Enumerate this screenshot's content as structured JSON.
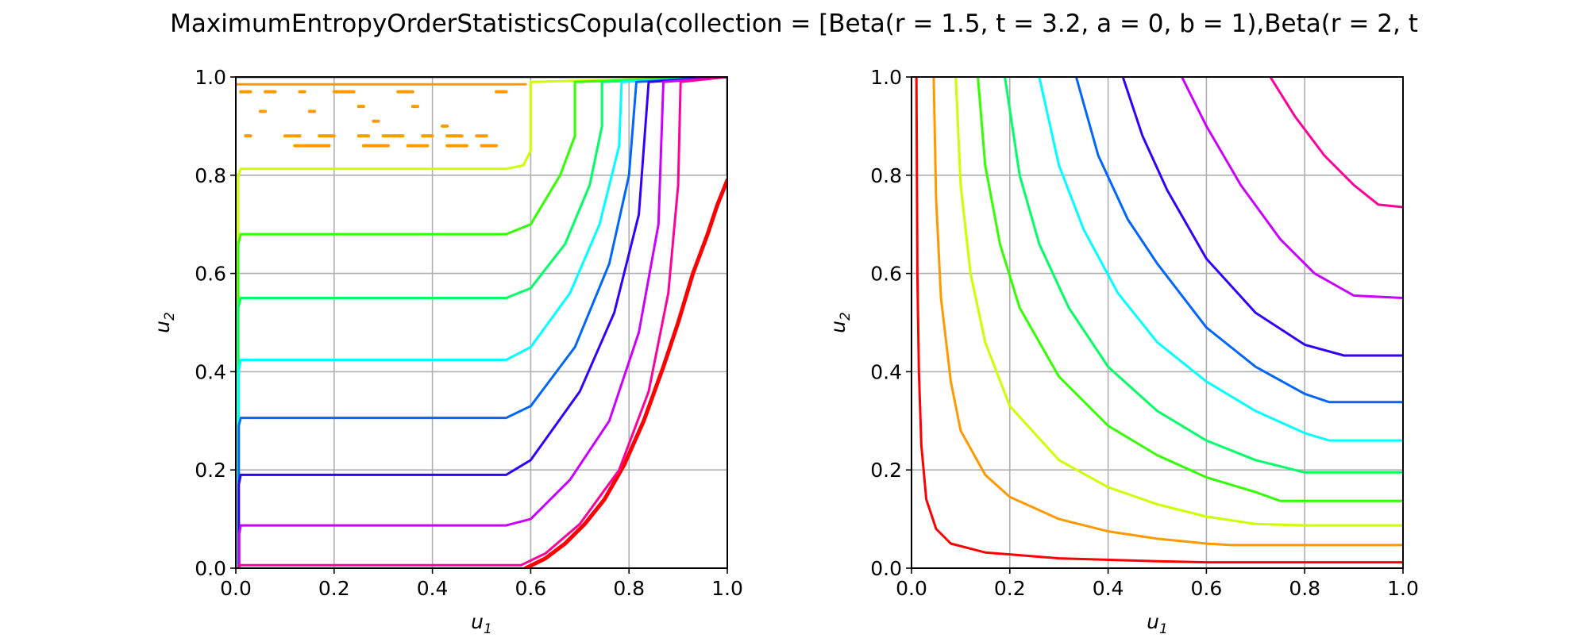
{
  "figure_title": "MaximumEntropyOrderStatisticsCopula(collection = [Beta(r = 1.5, t = 3.2, a = 0, b = 1),Beta(r = 2, t",
  "level_colors": [
    "#ff0000",
    "#ff9900",
    "#ccff00",
    "#33ff00",
    "#00ff66",
    "#00ffff",
    "#0066ff",
    "#3300ff",
    "#cc00ff",
    "#ff0099"
  ],
  "chart_data": [
    {
      "type": "contour",
      "title": "",
      "xlabel": "u1",
      "ylabel": "u2",
      "xlim": [
        0,
        1
      ],
      "ylim": [
        0,
        1
      ],
      "xticks": [
        "0.0",
        "0.2",
        "0.4",
        "0.6",
        "0.8",
        "1.0"
      ],
      "yticks": [
        "0.0",
        "0.2",
        "0.4",
        "0.6",
        "0.8",
        "1.0"
      ],
      "grid": true,
      "legend": "none",
      "series": [
        {
          "color": "#ff0000",
          "width": 5,
          "points": [
            [
              0.59,
              0.0
            ],
            [
              0.63,
              0.02
            ],
            [
              0.67,
              0.05
            ],
            [
              0.71,
              0.09
            ],
            [
              0.75,
              0.14
            ],
            [
              0.79,
              0.21
            ],
            [
              0.83,
              0.3
            ],
            [
              0.87,
              0.41
            ],
            [
              0.9,
              0.5
            ],
            [
              0.93,
              0.6
            ],
            [
              0.96,
              0.68
            ],
            [
              0.98,
              0.74
            ],
            [
              1.0,
              0.79
            ]
          ]
        },
        {
          "color": "#ff9900",
          "width": 3,
          "points": [
            [
              0.0,
              0.985
            ],
            [
              0.59,
              0.985
            ]
          ]
        },
        {
          "color": "#ccff00",
          "width": 3,
          "points": [
            [
              0.005,
              0.0
            ],
            [
              0.005,
              0.8
            ],
            [
              0.01,
              0.813
            ],
            [
              0.55,
              0.813
            ],
            [
              0.585,
              0.82
            ],
            [
              0.6,
              0.85
            ],
            [
              0.6,
              0.99
            ],
            [
              1.0,
              1.0
            ]
          ]
        },
        {
          "color": "#33ff00",
          "width": 3,
          "points": [
            [
              0.005,
              0.0
            ],
            [
              0.005,
              0.66
            ],
            [
              0.01,
              0.68
            ],
            [
              0.55,
              0.68
            ],
            [
              0.6,
              0.7
            ],
            [
              0.66,
              0.8
            ],
            [
              0.69,
              0.88
            ],
            [
              0.69,
              0.99
            ],
            [
              1.0,
              1.0
            ]
          ]
        },
        {
          "color": "#00ff66",
          "width": 3,
          "points": [
            [
              0.005,
              0.0
            ],
            [
              0.005,
              0.53
            ],
            [
              0.01,
              0.55
            ],
            [
              0.55,
              0.55
            ],
            [
              0.6,
              0.57
            ],
            [
              0.67,
              0.66
            ],
            [
              0.72,
              0.78
            ],
            [
              0.745,
              0.9
            ],
            [
              0.745,
              0.99
            ],
            [
              1.0,
              1.0
            ]
          ]
        },
        {
          "color": "#00ffff",
          "width": 3,
          "points": [
            [
              0.006,
              0.0
            ],
            [
              0.006,
              0.4
            ],
            [
              0.01,
              0.424
            ],
            [
              0.55,
              0.424
            ],
            [
              0.6,
              0.45
            ],
            [
              0.68,
              0.56
            ],
            [
              0.74,
              0.7
            ],
            [
              0.78,
              0.86
            ],
            [
              0.785,
              0.99
            ],
            [
              1.0,
              1.0
            ]
          ]
        },
        {
          "color": "#0066ff",
          "width": 3,
          "points": [
            [
              0.006,
              0.0
            ],
            [
              0.006,
              0.29
            ],
            [
              0.01,
              0.306
            ],
            [
              0.55,
              0.306
            ],
            [
              0.6,
              0.33
            ],
            [
              0.69,
              0.45
            ],
            [
              0.76,
              0.62
            ],
            [
              0.8,
              0.8
            ],
            [
              0.815,
              0.99
            ],
            [
              1.0,
              1.0
            ]
          ]
        },
        {
          "color": "#3300ff",
          "width": 3,
          "points": [
            [
              0.006,
              0.0
            ],
            [
              0.006,
              0.17
            ],
            [
              0.01,
              0.19
            ],
            [
              0.55,
              0.19
            ],
            [
              0.6,
              0.22
            ],
            [
              0.7,
              0.36
            ],
            [
              0.77,
              0.52
            ],
            [
              0.82,
              0.72
            ],
            [
              0.84,
              0.99
            ],
            [
              1.0,
              1.0
            ]
          ]
        },
        {
          "color": "#cc00ff",
          "width": 3,
          "points": [
            [
              0.007,
              0.0
            ],
            [
              0.007,
              0.07
            ],
            [
              0.01,
              0.087
            ],
            [
              0.55,
              0.087
            ],
            [
              0.6,
              0.1
            ],
            [
              0.68,
              0.18
            ],
            [
              0.76,
              0.3
            ],
            [
              0.82,
              0.48
            ],
            [
              0.86,
              0.7
            ],
            [
              0.87,
              0.99
            ],
            [
              1.0,
              1.0
            ]
          ]
        },
        {
          "color": "#ff0099",
          "width": 3,
          "points": [
            [
              0.007,
              0.0
            ],
            [
              0.007,
              0.006
            ],
            [
              0.58,
              0.006
            ],
            [
              0.63,
              0.03
            ],
            [
              0.7,
              0.09
            ],
            [
              0.78,
              0.2
            ],
            [
              0.84,
              0.36
            ],
            [
              0.88,
              0.56
            ],
            [
              0.9,
              0.78
            ],
            [
              0.905,
              0.99
            ],
            [
              1.0,
              1.0
            ]
          ]
        },
        {
          "color": "#000000",
          "width": 2.5,
          "points": [
            [
              0.0,
              1.0
            ],
            [
              1.0,
              1.0
            ],
            [
              1.0,
              0.8
            ]
          ]
        }
      ]
    },
    {
      "type": "contour",
      "title": "",
      "xlabel": "u1",
      "ylabel": "u2",
      "xlim": [
        0,
        1
      ],
      "ylim": [
        0,
        1
      ],
      "xticks": [
        "0.0",
        "0.2",
        "0.4",
        "0.6",
        "0.8",
        "1.0"
      ],
      "yticks": [
        "0.0",
        "0.2",
        "0.4",
        "0.6",
        "0.8",
        "1.0"
      ],
      "grid": true,
      "legend": "none",
      "series": [
        {
          "color": "#ff0000",
          "width": 3,
          "points": [
            [
              0.01,
              1.0
            ],
            [
              0.012,
              0.6
            ],
            [
              0.015,
              0.4
            ],
            [
              0.02,
              0.25
            ],
            [
              0.03,
              0.14
            ],
            [
              0.05,
              0.08
            ],
            [
              0.08,
              0.05
            ],
            [
              0.15,
              0.032
            ],
            [
              0.3,
              0.02
            ],
            [
              0.5,
              0.014
            ],
            [
              0.6,
              0.012
            ],
            [
              1.0,
              0.012
            ]
          ]
        },
        {
          "color": "#ff9900",
          "width": 3,
          "points": [
            [
              0.045,
              1.0
            ],
            [
              0.05,
              0.75
            ],
            [
              0.06,
              0.55
            ],
            [
              0.08,
              0.38
            ],
            [
              0.1,
              0.28
            ],
            [
              0.15,
              0.19
            ],
            [
              0.2,
              0.145
            ],
            [
              0.3,
              0.1
            ],
            [
              0.4,
              0.075
            ],
            [
              0.5,
              0.06
            ],
            [
              0.6,
              0.05
            ],
            [
              0.65,
              0.047
            ],
            [
              1.0,
              0.047
            ]
          ]
        },
        {
          "color": "#ccff00",
          "width": 3,
          "points": [
            [
              0.09,
              1.0
            ],
            [
              0.1,
              0.78
            ],
            [
              0.12,
              0.6
            ],
            [
              0.15,
              0.46
            ],
            [
              0.2,
              0.33
            ],
            [
              0.3,
              0.22
            ],
            [
              0.4,
              0.165
            ],
            [
              0.5,
              0.13
            ],
            [
              0.6,
              0.105
            ],
            [
              0.7,
              0.09
            ],
            [
              0.8,
              0.087
            ],
            [
              1.0,
              0.087
            ]
          ]
        },
        {
          "color": "#33ff00",
          "width": 3,
          "points": [
            [
              0.135,
              1.0
            ],
            [
              0.15,
              0.82
            ],
            [
              0.18,
              0.66
            ],
            [
              0.22,
              0.53
            ],
            [
              0.3,
              0.39
            ],
            [
              0.4,
              0.29
            ],
            [
              0.5,
              0.23
            ],
            [
              0.6,
              0.185
            ],
            [
              0.7,
              0.155
            ],
            [
              0.75,
              0.137
            ],
            [
              1.0,
              0.137
            ]
          ]
        },
        {
          "color": "#00ff66",
          "width": 3,
          "points": [
            [
              0.19,
              1.0
            ],
            [
              0.22,
              0.8
            ],
            [
              0.26,
              0.66
            ],
            [
              0.32,
              0.53
            ],
            [
              0.4,
              0.41
            ],
            [
              0.5,
              0.32
            ],
            [
              0.6,
              0.26
            ],
            [
              0.7,
              0.22
            ],
            [
              0.8,
              0.195
            ],
            [
              1.0,
              0.195
            ]
          ]
        },
        {
          "color": "#00ffff",
          "width": 3,
          "points": [
            [
              0.26,
              1.0
            ],
            [
              0.3,
              0.82
            ],
            [
              0.35,
              0.69
            ],
            [
              0.42,
              0.56
            ],
            [
              0.5,
              0.46
            ],
            [
              0.6,
              0.38
            ],
            [
              0.7,
              0.32
            ],
            [
              0.8,
              0.275
            ],
            [
              0.85,
              0.26
            ],
            [
              1.0,
              0.26
            ]
          ]
        },
        {
          "color": "#0066ff",
          "width": 3,
          "points": [
            [
              0.335,
              1.0
            ],
            [
              0.38,
              0.84
            ],
            [
              0.44,
              0.71
            ],
            [
              0.5,
              0.62
            ],
            [
              0.6,
              0.49
            ],
            [
              0.7,
              0.41
            ],
            [
              0.8,
              0.355
            ],
            [
              0.85,
              0.338
            ],
            [
              1.0,
              0.338
            ]
          ]
        },
        {
          "color": "#3300ff",
          "width": 3,
          "points": [
            [
              0.43,
              1.0
            ],
            [
              0.47,
              0.88
            ],
            [
              0.52,
              0.77
            ],
            [
              0.6,
              0.63
            ],
            [
              0.7,
              0.52
            ],
            [
              0.8,
              0.455
            ],
            [
              0.88,
              0.433
            ],
            [
              1.0,
              0.433
            ]
          ]
        },
        {
          "color": "#cc00ff",
          "width": 3,
          "points": [
            [
              0.55,
              1.0
            ],
            [
              0.6,
              0.9
            ],
            [
              0.67,
              0.78
            ],
            [
              0.75,
              0.67
            ],
            [
              0.82,
              0.6
            ],
            [
              0.9,
              0.555
            ],
            [
              1.0,
              0.55
            ]
          ]
        },
        {
          "color": "#ff0099",
          "width": 3,
          "points": [
            [
              0.73,
              1.0
            ],
            [
              0.78,
              0.92
            ],
            [
              0.84,
              0.84
            ],
            [
              0.9,
              0.78
            ],
            [
              0.95,
              0.74
            ],
            [
              1.0,
              0.735
            ]
          ]
        }
      ]
    }
  ]
}
